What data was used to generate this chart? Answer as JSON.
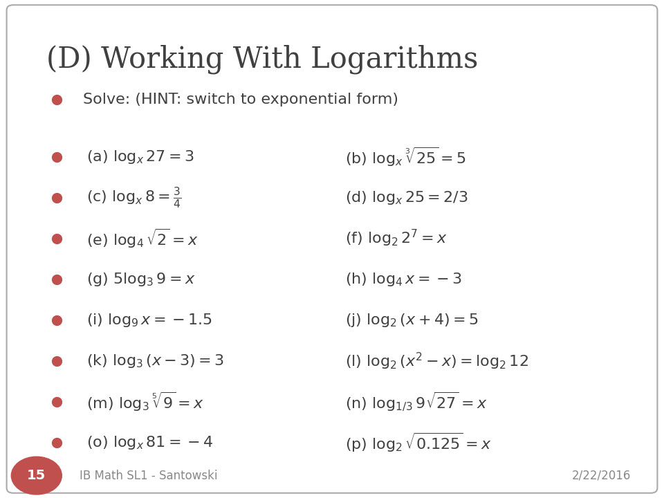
{
  "title": "(D) Working With Logarithms",
  "title_color": "#404040",
  "bg_color": "#ffffff",
  "bullet_color": "#C0504D",
  "text_color": "#404040",
  "footer_left": "IB Math SL1 - Santowski",
  "footer_right": "2/22/2016",
  "footer_num": "15",
  "bullet_intro": "Solve: (HINT: switch to exponential form)",
  "left_items": [
    "(a) $\\log_x 27 = 3$",
    "(c) $\\log_x 8 = \\frac{3}{4}$",
    "(e) $\\log_4 \\sqrt{2} = x$",
    "(g) $5\\log_3 9 = x$",
    "(i) $\\log_9 x = -1.5$",
    "(k) $\\log_3 (x - 3) = 3$",
    "(m) $\\log_3 \\sqrt[5]{9} = x$",
    "(o) $\\log_x 81 = -4$"
  ],
  "right_items": [
    "(b) $\\log_x \\sqrt[3]{25} = 5$",
    "(d) $\\log_x 25 = 2/3$",
    "(f) $\\log_2 2^7 = x$",
    "(h) $\\log_4 x = -3$",
    "(j) $\\log_2 (x + 4) = 5$",
    "(l) $\\log_2 (x^2 - x) = \\log_2 12$",
    "(n) $\\log_{1/3} 9\\sqrt{27} = x$",
    "(p) $\\log_2 \\sqrt{0.125} = x$"
  ]
}
